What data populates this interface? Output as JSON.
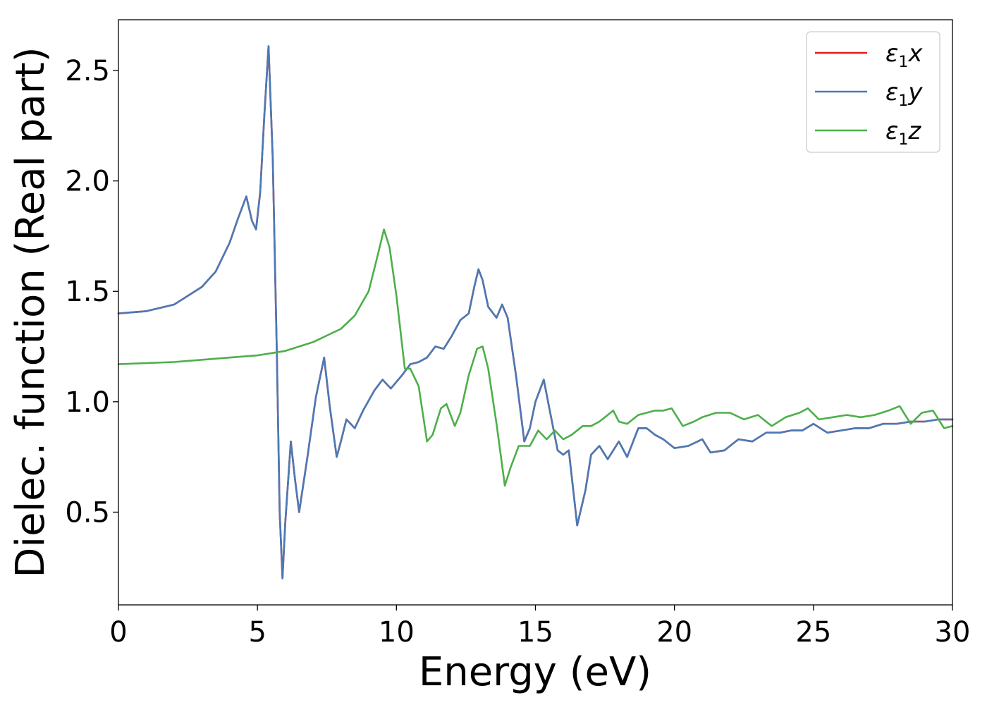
{
  "chart_data": {
    "type": "line",
    "xlabel": "Energy (eV)",
    "ylabel": "Dielec. function (Real part)",
    "xlim": [
      0,
      30
    ],
    "ylim": [
      0.08,
      2.73
    ],
    "xticks": [
      0,
      5,
      10,
      15,
      20,
      25,
      30
    ],
    "xtick_labels": [
      "0",
      "5",
      "10",
      "15",
      "20",
      "25",
      "30"
    ],
    "yticks": [
      0.5,
      1.0,
      1.5,
      2.0,
      2.5
    ],
    "ytick_labels": [
      "0.5",
      "1.0",
      "1.5",
      "2.0",
      "2.5"
    ],
    "grid": false,
    "legend_position": "top-right",
    "series": [
      {
        "name": "ε₁x",
        "legend_symbol": "ε",
        "legend_sub": "1",
        "legend_var": "x",
        "color": "#e41a1c",
        "points": [
          [
            0,
            1.4
          ],
          [
            1,
            1.41
          ],
          [
            2,
            1.44
          ],
          [
            3,
            1.52
          ],
          [
            3.5,
            1.59
          ],
          [
            4,
            1.72
          ],
          [
            4.3,
            1.83
          ],
          [
            4.6,
            1.93
          ],
          [
            4.8,
            1.82
          ],
          [
            4.95,
            1.78
          ],
          [
            5.1,
            1.95
          ],
          [
            5.25,
            2.3
          ],
          [
            5.4,
            2.61
          ],
          [
            5.55,
            2.1
          ],
          [
            5.7,
            1.2
          ],
          [
            5.8,
            0.5
          ],
          [
            5.9,
            0.2
          ],
          [
            6.0,
            0.45
          ],
          [
            6.2,
            0.82
          ],
          [
            6.35,
            0.65
          ],
          [
            6.5,
            0.5
          ],
          [
            6.8,
            0.75
          ],
          [
            7.1,
            1.02
          ],
          [
            7.4,
            1.2
          ],
          [
            7.6,
            0.98
          ],
          [
            7.85,
            0.75
          ],
          [
            8.0,
            0.82
          ],
          [
            8.2,
            0.92
          ],
          [
            8.5,
            0.88
          ],
          [
            8.8,
            0.96
          ],
          [
            9.2,
            1.05
          ],
          [
            9.5,
            1.1
          ],
          [
            9.8,
            1.06
          ],
          [
            10.2,
            1.12
          ],
          [
            10.5,
            1.17
          ],
          [
            10.8,
            1.18
          ],
          [
            11.1,
            1.2
          ],
          [
            11.4,
            1.25
          ],
          [
            11.7,
            1.24
          ],
          [
            12.0,
            1.3
          ],
          [
            12.3,
            1.37
          ],
          [
            12.6,
            1.4
          ],
          [
            12.8,
            1.52
          ],
          [
            12.95,
            1.6
          ],
          [
            13.1,
            1.55
          ],
          [
            13.3,
            1.43
          ],
          [
            13.6,
            1.38
          ],
          [
            13.8,
            1.44
          ],
          [
            14.0,
            1.38
          ],
          [
            14.3,
            1.12
          ],
          [
            14.6,
            0.82
          ],
          [
            14.8,
            0.88
          ],
          [
            15.0,
            1.0
          ],
          [
            15.3,
            1.1
          ],
          [
            15.5,
            0.97
          ],
          [
            15.8,
            0.78
          ],
          [
            16.0,
            0.76
          ],
          [
            16.2,
            0.78
          ],
          [
            16.5,
            0.44
          ],
          [
            16.8,
            0.6
          ],
          [
            17.0,
            0.76
          ],
          [
            17.3,
            0.8
          ],
          [
            17.6,
            0.74
          ],
          [
            18.0,
            0.82
          ],
          [
            18.3,
            0.75
          ],
          [
            18.7,
            0.88
          ],
          [
            19.0,
            0.88
          ],
          [
            19.3,
            0.85
          ],
          [
            19.6,
            0.83
          ],
          [
            20.0,
            0.79
          ],
          [
            20.5,
            0.8
          ],
          [
            21.0,
            0.83
          ],
          [
            21.3,
            0.77
          ],
          [
            21.8,
            0.78
          ],
          [
            22.3,
            0.83
          ],
          [
            22.8,
            0.82
          ],
          [
            23.3,
            0.86
          ],
          [
            23.8,
            0.86
          ],
          [
            24.2,
            0.87
          ],
          [
            24.6,
            0.87
          ],
          [
            25.0,
            0.9
          ],
          [
            25.5,
            0.86
          ],
          [
            26.0,
            0.87
          ],
          [
            26.5,
            0.88
          ],
          [
            27.0,
            0.88
          ],
          [
            27.5,
            0.9
          ],
          [
            28.0,
            0.9
          ],
          [
            28.5,
            0.91
          ],
          [
            29.0,
            0.91
          ],
          [
            29.5,
            0.92
          ],
          [
            30.0,
            0.92
          ]
        ]
      },
      {
        "name": "ε₁y",
        "legend_symbol": "ε",
        "legend_sub": "1",
        "legend_var": "y",
        "color": "#4a7ab5",
        "points": [
          [
            0,
            1.4
          ],
          [
            1,
            1.41
          ],
          [
            2,
            1.44
          ],
          [
            3,
            1.52
          ],
          [
            3.5,
            1.59
          ],
          [
            4,
            1.72
          ],
          [
            4.3,
            1.83
          ],
          [
            4.6,
            1.93
          ],
          [
            4.8,
            1.82
          ],
          [
            4.95,
            1.78
          ],
          [
            5.1,
            1.95
          ],
          [
            5.25,
            2.3
          ],
          [
            5.4,
            2.61
          ],
          [
            5.55,
            2.1
          ],
          [
            5.7,
            1.2
          ],
          [
            5.8,
            0.5
          ],
          [
            5.9,
            0.2
          ],
          [
            6.0,
            0.45
          ],
          [
            6.2,
            0.82
          ],
          [
            6.35,
            0.65
          ],
          [
            6.5,
            0.5
          ],
          [
            6.8,
            0.75
          ],
          [
            7.1,
            1.02
          ],
          [
            7.4,
            1.2
          ],
          [
            7.6,
            0.98
          ],
          [
            7.85,
            0.75
          ],
          [
            8.0,
            0.82
          ],
          [
            8.2,
            0.92
          ],
          [
            8.5,
            0.88
          ],
          [
            8.8,
            0.96
          ],
          [
            9.2,
            1.05
          ],
          [
            9.5,
            1.1
          ],
          [
            9.8,
            1.06
          ],
          [
            10.2,
            1.12
          ],
          [
            10.5,
            1.17
          ],
          [
            10.8,
            1.18
          ],
          [
            11.1,
            1.2
          ],
          [
            11.4,
            1.25
          ],
          [
            11.7,
            1.24
          ],
          [
            12.0,
            1.3
          ],
          [
            12.3,
            1.37
          ],
          [
            12.6,
            1.4
          ],
          [
            12.8,
            1.52
          ],
          [
            12.95,
            1.6
          ],
          [
            13.1,
            1.55
          ],
          [
            13.3,
            1.43
          ],
          [
            13.6,
            1.38
          ],
          [
            13.8,
            1.44
          ],
          [
            14.0,
            1.38
          ],
          [
            14.3,
            1.12
          ],
          [
            14.6,
            0.82
          ],
          [
            14.8,
            0.88
          ],
          [
            15.0,
            1.0
          ],
          [
            15.3,
            1.1
          ],
          [
            15.5,
            0.97
          ],
          [
            15.8,
            0.78
          ],
          [
            16.0,
            0.76
          ],
          [
            16.2,
            0.78
          ],
          [
            16.5,
            0.44
          ],
          [
            16.8,
            0.6
          ],
          [
            17.0,
            0.76
          ],
          [
            17.3,
            0.8
          ],
          [
            17.6,
            0.74
          ],
          [
            18.0,
            0.82
          ],
          [
            18.3,
            0.75
          ],
          [
            18.7,
            0.88
          ],
          [
            19.0,
            0.88
          ],
          [
            19.3,
            0.85
          ],
          [
            19.6,
            0.83
          ],
          [
            20.0,
            0.79
          ],
          [
            20.5,
            0.8
          ],
          [
            21.0,
            0.83
          ],
          [
            21.3,
            0.77
          ],
          [
            21.8,
            0.78
          ],
          [
            22.3,
            0.83
          ],
          [
            22.8,
            0.82
          ],
          [
            23.3,
            0.86
          ],
          [
            23.8,
            0.86
          ],
          [
            24.2,
            0.87
          ],
          [
            24.6,
            0.87
          ],
          [
            25.0,
            0.9
          ],
          [
            25.5,
            0.86
          ],
          [
            26.0,
            0.87
          ],
          [
            26.5,
            0.88
          ],
          [
            27.0,
            0.88
          ],
          [
            27.5,
            0.9
          ],
          [
            28.0,
            0.9
          ],
          [
            28.5,
            0.91
          ],
          [
            29.0,
            0.91
          ],
          [
            29.5,
            0.92
          ],
          [
            30.0,
            0.92
          ]
        ]
      },
      {
        "name": "ε₁z",
        "legend_symbol": "ε",
        "legend_sub": "1",
        "legend_var": "z",
        "color": "#4daf4a",
        "points": [
          [
            0,
            1.17
          ],
          [
            2,
            1.18
          ],
          [
            4,
            1.2
          ],
          [
            5,
            1.21
          ],
          [
            6,
            1.23
          ],
          [
            7,
            1.27
          ],
          [
            8,
            1.33
          ],
          [
            8.5,
            1.39
          ],
          [
            9.0,
            1.5
          ],
          [
            9.3,
            1.65
          ],
          [
            9.55,
            1.78
          ],
          [
            9.75,
            1.7
          ],
          [
            10.0,
            1.48
          ],
          [
            10.3,
            1.15
          ],
          [
            10.5,
            1.15
          ],
          [
            10.8,
            1.07
          ],
          [
            11.1,
            0.82
          ],
          [
            11.3,
            0.85
          ],
          [
            11.6,
            0.97
          ],
          [
            11.8,
            0.99
          ],
          [
            12.1,
            0.89
          ],
          [
            12.3,
            0.95
          ],
          [
            12.6,
            1.12
          ],
          [
            12.9,
            1.24
          ],
          [
            13.1,
            1.25
          ],
          [
            13.3,
            1.15
          ],
          [
            13.6,
            0.9
          ],
          [
            13.9,
            0.62
          ],
          [
            14.1,
            0.7
          ],
          [
            14.4,
            0.8
          ],
          [
            14.8,
            0.8
          ],
          [
            15.1,
            0.87
          ],
          [
            15.4,
            0.83
          ],
          [
            15.7,
            0.87
          ],
          [
            16.0,
            0.83
          ],
          [
            16.3,
            0.85
          ],
          [
            16.7,
            0.89
          ],
          [
            17.0,
            0.89
          ],
          [
            17.3,
            0.91
          ],
          [
            17.6,
            0.94
          ],
          [
            17.8,
            0.96
          ],
          [
            18.0,
            0.91
          ],
          [
            18.3,
            0.9
          ],
          [
            18.7,
            0.94
          ],
          [
            19.0,
            0.95
          ],
          [
            19.3,
            0.96
          ],
          [
            19.6,
            0.96
          ],
          [
            19.9,
            0.97
          ],
          [
            20.3,
            0.89
          ],
          [
            20.7,
            0.91
          ],
          [
            21.0,
            0.93
          ],
          [
            21.5,
            0.95
          ],
          [
            22.0,
            0.95
          ],
          [
            22.5,
            0.92
          ],
          [
            23.0,
            0.94
          ],
          [
            23.5,
            0.89
          ],
          [
            24.0,
            0.93
          ],
          [
            24.5,
            0.95
          ],
          [
            24.8,
            0.97
          ],
          [
            25.2,
            0.92
          ],
          [
            25.7,
            0.93
          ],
          [
            26.2,
            0.94
          ],
          [
            26.7,
            0.93
          ],
          [
            27.2,
            0.94
          ],
          [
            27.7,
            0.96
          ],
          [
            28.1,
            0.98
          ],
          [
            28.5,
            0.9
          ],
          [
            28.9,
            0.95
          ],
          [
            29.3,
            0.96
          ],
          [
            29.7,
            0.88
          ],
          [
            30.0,
            0.89
          ]
        ]
      }
    ]
  }
}
